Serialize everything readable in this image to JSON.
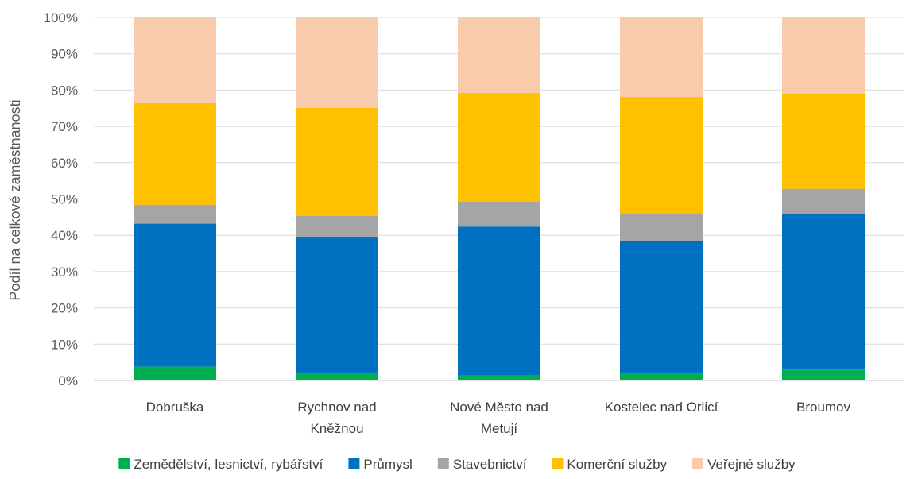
{
  "chart_data": {
    "type": "bar",
    "stacked": true,
    "ylabel": "Podíl na celkové zaměstnanosti",
    "xlabel": "",
    "ylim": [
      0,
      100
    ],
    "yticks": [
      "0%",
      "10%",
      "20%",
      "30%",
      "40%",
      "50%",
      "60%",
      "70%",
      "80%",
      "90%",
      "100%"
    ],
    "grid": true,
    "legend_position": "bottom",
    "categories": [
      [
        "Dobruška"
      ],
      [
        "Rychnov nad",
        "Kněžnou"
      ],
      [
        "Nové Město nad",
        "Metují"
      ],
      [
        "Kostelec nad Orlicí"
      ],
      [
        "Broumov"
      ]
    ],
    "series": [
      {
        "name": "Zemědělství, lesnictví, rybářství",
        "color": "#00b050",
        "values": [
          3.8,
          2.2,
          1.4,
          2.2,
          3.0
        ]
      },
      {
        "name": "Průmysl",
        "color": "#0070c0",
        "values": [
          39.4,
          37.4,
          41.0,
          36.1,
          42.8
        ]
      },
      {
        "name": "Stavebnictví",
        "color": "#a5a5a5",
        "values": [
          5.2,
          5.7,
          6.9,
          7.5,
          7.0
        ]
      },
      {
        "name": "Komerční služby",
        "color": "#ffc000",
        "values": [
          28.0,
          29.8,
          29.9,
          32.3,
          26.2
        ]
      },
      {
        "name": "Veřejné služby",
        "color": "#f8cbad",
        "values": [
          23.6,
          24.9,
          20.8,
          21.9,
          21.0
        ]
      }
    ]
  }
}
